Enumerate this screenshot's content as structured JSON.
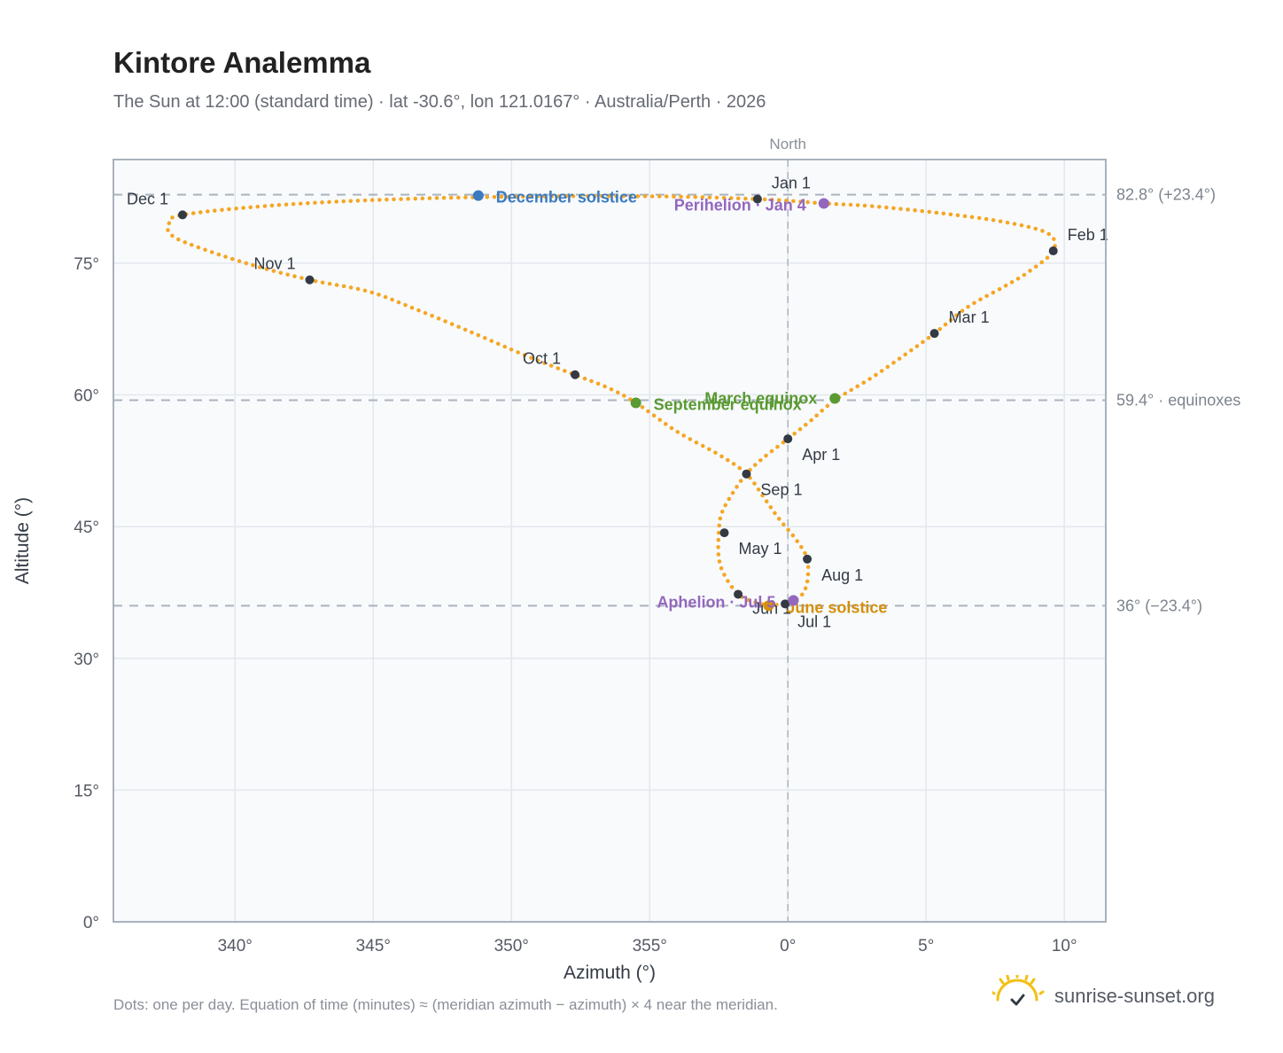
{
  "title": "Kintore Analemma",
  "subtitle": "The Sun at 12:00 (standard time) · lat -30.6°, lon 121.0167° · Australia/Perth · 2026",
  "footnote": "Dots: one per day. Equation of time (minutes) ≈ (meridian azimuth − azimuth) × 4 near the meridian.",
  "brand": {
    "name": "sunrise-sunset.org",
    "icon": "sun-check-icon"
  },
  "colors": {
    "curve": "#f5a623",
    "month": "#333a44",
    "solstice_dec": "#3a7ac0",
    "solstice_jun": "#d4900a",
    "equinox": "#5a9a32",
    "apsis": "#9467bd",
    "refline": "#aab4be"
  },
  "chart_data": {
    "type": "scatter",
    "xlabel": "Azimuth (°)",
    "ylabel": "Altitude (°)",
    "xlim": [
      335.6,
      11.5
    ],
    "ylim": [
      0,
      86.8
    ],
    "x_ticks": [
      {
        "value": 340,
        "label": "340°"
      },
      {
        "value": 345,
        "label": "345°"
      },
      {
        "value": 350,
        "label": "350°"
      },
      {
        "value": 355,
        "label": "355°"
      },
      {
        "value": 0,
        "label": "0°"
      },
      {
        "value": 5,
        "label": "5°"
      },
      {
        "value": 10,
        "label": "10°"
      }
    ],
    "y_ticks": [
      {
        "value": 0,
        "label": "0°"
      },
      {
        "value": 15,
        "label": "15°"
      },
      {
        "value": 30,
        "label": "30°"
      },
      {
        "value": 45,
        "label": "45°"
      },
      {
        "value": 60,
        "label": "60°"
      },
      {
        "value": 75,
        "label": "75°"
      }
    ],
    "grid": true,
    "north_label": "North",
    "north_azimuth": 0,
    "reference_lines": [
      {
        "altitude": 82.8,
        "label": "82.8° (+23.4°)"
      },
      {
        "altitude": 59.4,
        "label": "59.4° · equinoxes"
      },
      {
        "altitude": 36,
        "label": "36° (−23.4°)"
      }
    ],
    "series": [
      {
        "points": [
          [
            -1.1,
            82.3
          ],
          [
            0.5,
            82.0
          ],
          [
            1.3,
            81.8
          ],
          [
            3.0,
            81.5
          ],
          [
            5.5,
            80.7
          ],
          [
            7.8,
            79.7
          ],
          [
            9.4,
            78.4
          ],
          [
            9.6,
            76.4
          ],
          [
            8.7,
            74.0
          ],
          [
            7.8,
            72.3
          ],
          [
            6.5,
            70.0
          ],
          [
            5.3,
            67.0
          ],
          [
            4.2,
            64.5
          ],
          [
            3.0,
            61.9
          ],
          [
            1.7,
            59.4
          ],
          [
            0.8,
            57.0
          ],
          [
            0.0,
            55.0
          ],
          [
            -0.9,
            52.8
          ],
          [
            -1.5,
            51.0
          ],
          [
            -2.0,
            48.8
          ],
          [
            -2.4,
            46.5
          ],
          [
            -2.5,
            44.3
          ],
          [
            -2.5,
            41.5
          ],
          [
            -2.3,
            39.5
          ],
          [
            -1.8,
            37.3
          ],
          [
            -1.2,
            36.4
          ],
          [
            -0.7,
            36.1
          ],
          [
            0.0,
            36.2
          ],
          [
            0.2,
            36.5
          ],
          [
            0.5,
            37.2
          ],
          [
            0.7,
            38.7
          ],
          [
            0.7,
            41.3
          ],
          [
            0.3,
            43.5
          ],
          [
            -0.3,
            45.8
          ],
          [
            -0.8,
            48.0
          ],
          [
            -1.5,
            51.0
          ],
          [
            -2.5,
            53.2
          ],
          [
            -4.0,
            55.8
          ],
          [
            -5.5,
            59.1
          ],
          [
            -6.5,
            60.8
          ],
          [
            -7.8,
            62.4
          ],
          [
            -9.5,
            64.5
          ],
          [
            -11.5,
            67.2
          ],
          [
            -13.5,
            69.8
          ],
          [
            -15.2,
            71.8
          ],
          [
            -17.3,
            73.1
          ],
          [
            -19.5,
            74.9
          ],
          [
            -21.5,
            77.0
          ],
          [
            -22.3,
            78.2
          ],
          [
            -22.4,
            79.4
          ],
          [
            -21.9,
            80.5
          ],
          [
            -18.5,
            81.6
          ],
          [
            -14.0,
            82.3
          ],
          [
            -9.0,
            82.6
          ],
          [
            -4.5,
            82.6
          ],
          [
            -1.1,
            82.3
          ]
        ],
        "smooth": true
      }
    ],
    "month_markers": [
      {
        "label": "Jan 1",
        "az": -1.1,
        "alt": 82.3
      },
      {
        "label": "Feb 1",
        "az": 9.6,
        "alt": 76.4
      },
      {
        "label": "Mar 1",
        "az": 5.3,
        "alt": 67.0
      },
      {
        "label": "Apr 1",
        "az": 0.0,
        "alt": 55.0
      },
      {
        "label": "May 1",
        "az": -2.3,
        "alt": 44.3
      },
      {
        "label": "Jun 1",
        "az": -1.8,
        "alt": 37.3
      },
      {
        "label": "Jul 1",
        "az": -0.1,
        "alt": 36.2
      },
      {
        "label": "Aug 1",
        "az": 0.7,
        "alt": 41.3
      },
      {
        "label": "Sep 1",
        "az": -1.5,
        "alt": 51.0
      },
      {
        "label": "Oct 1",
        "az": -7.7,
        "alt": 62.3
      },
      {
        "label": "Nov 1",
        "az": -17.3,
        "alt": 73.1
      },
      {
        "label": "Dec 1",
        "az": -21.9,
        "alt": 80.5
      }
    ],
    "events": [
      {
        "label": "December solstice",
        "az": -11.2,
        "alt": 82.7,
        "color": "#3a7ac0"
      },
      {
        "label": "Perihelion · Jan 4",
        "az": 1.3,
        "alt": 81.8,
        "color": "#9467bd"
      },
      {
        "label": "March equinox",
        "az": 1.7,
        "alt": 59.6,
        "color": "#5a9a32"
      },
      {
        "label": "September equinox",
        "az": -5.5,
        "alt": 59.1,
        "color": "#5a9a32"
      },
      {
        "label": "June solstice",
        "az": -0.7,
        "alt": 36.0,
        "color": "#d4900a"
      },
      {
        "label": "Aphelion · Jul 5",
        "az": 0.2,
        "alt": 36.6,
        "color": "#9467bd"
      }
    ]
  }
}
